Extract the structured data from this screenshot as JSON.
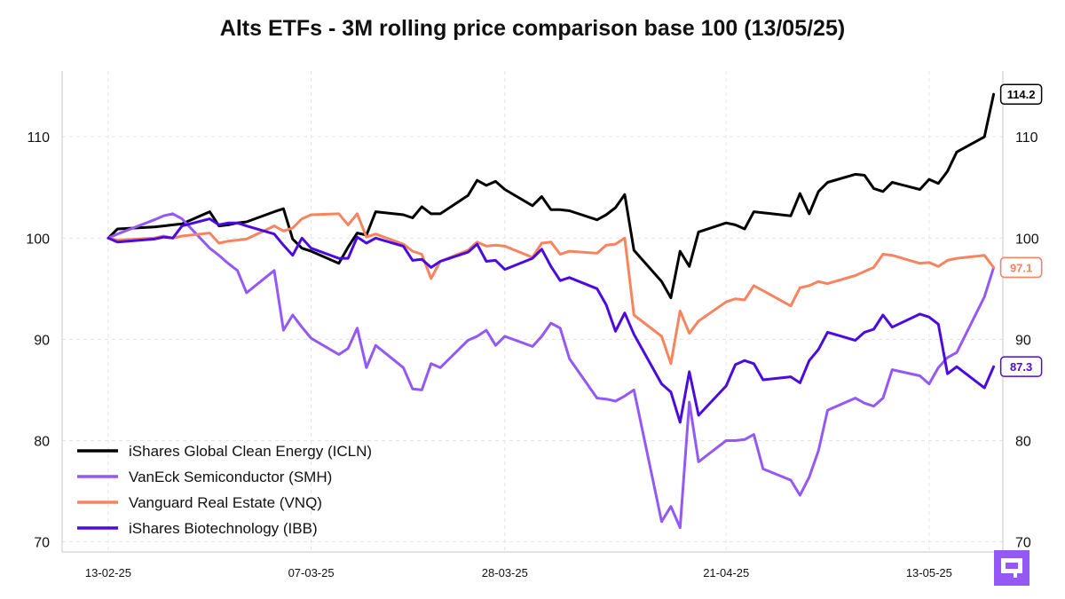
{
  "chart_data": {
    "type": "line",
    "title": "Alts ETFs - 3M rolling price comparison base 100 (13/05/25)",
    "xlabel": "",
    "ylabel": "",
    "ylim": [
      69,
      116.5
    ],
    "yticks": [
      70,
      80,
      90,
      100,
      110
    ],
    "x_tick_labels": [
      "13-02-25",
      "07-03-25",
      "28-03-25",
      "21-04-25",
      "13-05-25"
    ],
    "x_tick_dates": [
      "2025-02-13",
      "2025-03-07",
      "2025-03-28",
      "2025-04-21",
      "2025-05-13"
    ],
    "xlim": [
      "2025-02-08",
      "2025-05-21"
    ],
    "grid": true,
    "legend_position": "lower-left",
    "series": [
      {
        "name": "iShares Global Clean Energy (ICLN)",
        "color": "#000000",
        "end_label": "114.2",
        "points": [
          [
            "2025-02-13",
            100.0
          ],
          [
            "2025-02-14",
            100.9
          ],
          [
            "2025-02-18",
            101.1
          ],
          [
            "2025-02-19",
            101.2
          ],
          [
            "2025-02-20",
            101.3
          ],
          [
            "2025-02-21",
            101.4
          ],
          [
            "2025-02-24",
            102.6
          ],
          [
            "2025-02-25",
            101.2
          ],
          [
            "2025-02-26",
            101.3
          ],
          [
            "2025-02-27",
            101.5
          ],
          [
            "2025-02-28",
            101.6
          ],
          [
            "2025-03-03",
            102.6
          ],
          [
            "2025-03-04",
            102.9
          ],
          [
            "2025-03-05",
            99.9
          ],
          [
            "2025-03-06",
            99.0
          ],
          [
            "2025-03-07",
            98.7
          ],
          [
            "2025-03-10",
            97.5
          ],
          [
            "2025-03-11",
            99.1
          ],
          [
            "2025-03-12",
            100.5
          ],
          [
            "2025-03-13",
            100.3
          ],
          [
            "2025-03-14",
            102.6
          ],
          [
            "2025-03-17",
            102.3
          ],
          [
            "2025-03-18",
            102.0
          ],
          [
            "2025-03-19",
            103.1
          ],
          [
            "2025-03-20",
            102.4
          ],
          [
            "2025-03-21",
            102.4
          ],
          [
            "2025-03-24",
            104.2
          ],
          [
            "2025-03-25",
            105.7
          ],
          [
            "2025-03-26",
            105.2
          ],
          [
            "2025-03-27",
            105.6
          ],
          [
            "2025-03-28",
            104.8
          ],
          [
            "2025-03-31",
            103.2
          ],
          [
            "2025-04-01",
            104.1
          ],
          [
            "2025-04-02",
            102.8
          ],
          [
            "2025-04-03",
            102.8
          ],
          [
            "2025-04-04",
            102.7
          ],
          [
            "2025-04-07",
            101.8
          ],
          [
            "2025-04-08",
            102.3
          ],
          [
            "2025-04-09",
            103.0
          ],
          [
            "2025-04-10",
            104.3
          ],
          [
            "2025-04-11",
            98.8
          ],
          [
            "2025-04-14",
            95.7
          ],
          [
            "2025-04-15",
            94.1
          ],
          [
            "2025-04-16",
            98.7
          ],
          [
            "2025-04-17",
            97.2
          ],
          [
            "2025-04-18",
            100.6
          ],
          [
            "2025-04-21",
            101.5
          ],
          [
            "2025-04-22",
            101.3
          ],
          [
            "2025-04-23",
            100.9
          ],
          [
            "2025-04-24",
            102.6
          ],
          [
            "2025-04-25",
            102.5
          ],
          [
            "2025-04-28",
            102.2
          ],
          [
            "2025-04-29",
            104.4
          ],
          [
            "2025-04-30",
            102.4
          ],
          [
            "2025-05-01",
            104.6
          ],
          [
            "2025-05-02",
            105.5
          ],
          [
            "2025-05-05",
            106.3
          ],
          [
            "2025-05-06",
            106.2
          ],
          [
            "2025-05-07",
            104.9
          ],
          [
            "2025-05-08",
            104.6
          ],
          [
            "2025-05-09",
            105.5
          ],
          [
            "2025-05-12",
            104.8
          ],
          [
            "2025-05-13",
            105.8
          ],
          [
            "2025-05-14",
            105.4
          ],
          [
            "2025-05-15",
            106.6
          ],
          [
            "2025-05-16",
            108.5
          ],
          [
            "2025-05-19",
            110.0
          ],
          [
            "2025-05-20",
            114.2
          ]
        ]
      },
      {
        "name": "VanEck Semiconductor (SMH)",
        "color": "#9358f5",
        "end_label": "97.1",
        "points": [
          [
            "2025-02-13",
            100.0
          ],
          [
            "2025-02-14",
            100.4
          ],
          [
            "2025-02-18",
            101.8
          ],
          [
            "2025-02-19",
            102.2
          ],
          [
            "2025-02-20",
            102.4
          ],
          [
            "2025-02-21",
            101.9
          ],
          [
            "2025-02-24",
            99.0
          ],
          [
            "2025-02-25",
            98.3
          ],
          [
            "2025-02-26",
            97.5
          ],
          [
            "2025-02-27",
            96.8
          ],
          [
            "2025-02-28",
            94.6
          ],
          [
            "2025-03-03",
            96.8
          ],
          [
            "2025-03-04",
            90.9
          ],
          [
            "2025-03-05",
            92.4
          ],
          [
            "2025-03-06",
            91.2
          ],
          [
            "2025-03-07",
            90.1
          ],
          [
            "2025-03-10",
            88.5
          ],
          [
            "2025-03-11",
            89.1
          ],
          [
            "2025-03-12",
            91.1
          ],
          [
            "2025-03-13",
            87.2
          ],
          [
            "2025-03-14",
            89.4
          ],
          [
            "2025-03-17",
            87.2
          ],
          [
            "2025-03-18",
            85.1
          ],
          [
            "2025-03-19",
            85.0
          ],
          [
            "2025-03-20",
            87.6
          ],
          [
            "2025-03-21",
            87.2
          ],
          [
            "2025-03-24",
            89.9
          ],
          [
            "2025-03-25",
            90.3
          ],
          [
            "2025-03-26",
            90.9
          ],
          [
            "2025-03-27",
            89.4
          ],
          [
            "2025-03-28",
            90.3
          ],
          [
            "2025-03-31",
            89.3
          ],
          [
            "2025-04-01",
            90.3
          ],
          [
            "2025-04-02",
            91.6
          ],
          [
            "2025-04-03",
            91.1
          ],
          [
            "2025-04-04",
            88.1
          ],
          [
            "2025-04-07",
            84.2
          ],
          [
            "2025-04-08",
            84.1
          ],
          [
            "2025-04-09",
            83.9
          ],
          [
            "2025-04-10",
            84.4
          ],
          [
            "2025-04-11",
            85.0
          ],
          [
            "2025-04-14",
            72.0
          ],
          [
            "2025-04-15",
            73.5
          ],
          [
            "2025-04-16",
            71.4
          ],
          [
            "2025-04-17",
            83.8
          ],
          [
            "2025-04-18",
            77.9
          ],
          [
            "2025-04-21",
            80.0
          ],
          [
            "2025-04-22",
            80.0
          ],
          [
            "2025-04-23",
            80.1
          ],
          [
            "2025-04-24",
            80.6
          ],
          [
            "2025-04-25",
            77.2
          ],
          [
            "2025-04-28",
            76.1
          ],
          [
            "2025-04-29",
            74.6
          ],
          [
            "2025-04-30",
            76.4
          ],
          [
            "2025-05-01",
            79.0
          ],
          [
            "2025-05-02",
            83.0
          ],
          [
            "2025-05-05",
            84.2
          ],
          [
            "2025-05-06",
            83.7
          ],
          [
            "2025-05-07",
            83.4
          ],
          [
            "2025-05-08",
            84.2
          ],
          [
            "2025-05-09",
            87.0
          ],
          [
            "2025-05-12",
            86.4
          ],
          [
            "2025-05-13",
            85.6
          ],
          [
            "2025-05-14",
            87.2
          ],
          [
            "2025-05-15",
            88.2
          ],
          [
            "2025-05-16",
            88.7
          ],
          [
            "2025-05-19",
            94.2
          ],
          [
            "2025-05-20",
            97.1
          ]
        ]
      },
      {
        "name": "Vanguard Real Estate (VNQ)",
        "color": "#f7845e",
        "end_label": "97.1",
        "points": [
          [
            "2025-02-13",
            100.0
          ],
          [
            "2025-02-14",
            99.8
          ],
          [
            "2025-02-18",
            100.0
          ],
          [
            "2025-02-19",
            100.2
          ],
          [
            "2025-02-20",
            100.0
          ],
          [
            "2025-02-21",
            100.2
          ],
          [
            "2025-02-24",
            100.5
          ],
          [
            "2025-02-25",
            99.5
          ],
          [
            "2025-02-26",
            99.7
          ],
          [
            "2025-02-27",
            99.8
          ],
          [
            "2025-02-28",
            99.9
          ],
          [
            "2025-03-03",
            101.2
          ],
          [
            "2025-03-04",
            100.7
          ],
          [
            "2025-03-05",
            101.0
          ],
          [
            "2025-03-06",
            101.9
          ],
          [
            "2025-03-07",
            102.3
          ],
          [
            "2025-03-10",
            102.4
          ],
          [
            "2025-03-11",
            101.3
          ],
          [
            "2025-03-12",
            102.4
          ],
          [
            "2025-03-13",
            100.1
          ],
          [
            "2025-03-14",
            100.4
          ],
          [
            "2025-03-17",
            99.4
          ],
          [
            "2025-03-18",
            98.7
          ],
          [
            "2025-03-19",
            98.4
          ],
          [
            "2025-03-20",
            96.0
          ],
          [
            "2025-03-21",
            97.7
          ],
          [
            "2025-03-24",
            98.8
          ],
          [
            "2025-03-25",
            99.6
          ],
          [
            "2025-03-26",
            99.2
          ],
          [
            "2025-03-27",
            99.3
          ],
          [
            "2025-03-28",
            99.2
          ],
          [
            "2025-03-31",
            98.1
          ],
          [
            "2025-04-01",
            99.5
          ],
          [
            "2025-04-02",
            99.6
          ],
          [
            "2025-04-03",
            98.4
          ],
          [
            "2025-04-04",
            98.7
          ],
          [
            "2025-04-07",
            98.5
          ],
          [
            "2025-04-08",
            99.3
          ],
          [
            "2025-04-09",
            99.4
          ],
          [
            "2025-04-10",
            100.0
          ],
          [
            "2025-04-11",
            92.4
          ],
          [
            "2025-04-14",
            90.3
          ],
          [
            "2025-04-15",
            87.6
          ],
          [
            "2025-04-16",
            92.8
          ],
          [
            "2025-04-17",
            90.6
          ],
          [
            "2025-04-18",
            91.8
          ],
          [
            "2025-04-21",
            93.7
          ],
          [
            "2025-04-22",
            94.0
          ],
          [
            "2025-04-23",
            93.9
          ],
          [
            "2025-04-24",
            95.3
          ],
          [
            "2025-04-25",
            94.8
          ],
          [
            "2025-04-28",
            93.3
          ],
          [
            "2025-04-29",
            95.1
          ],
          [
            "2025-04-30",
            95.3
          ],
          [
            "2025-05-01",
            95.7
          ],
          [
            "2025-05-02",
            95.5
          ],
          [
            "2025-05-05",
            96.3
          ],
          [
            "2025-05-06",
            96.7
          ],
          [
            "2025-05-07",
            97.1
          ],
          [
            "2025-05-08",
            98.4
          ],
          [
            "2025-05-09",
            98.3
          ],
          [
            "2025-05-12",
            97.5
          ],
          [
            "2025-05-13",
            97.6
          ],
          [
            "2025-05-14",
            97.2
          ],
          [
            "2025-05-15",
            97.8
          ],
          [
            "2025-05-16",
            98.0
          ],
          [
            "2025-05-19",
            98.3
          ],
          [
            "2025-05-20",
            97.1
          ]
        ]
      },
      {
        "name": "iShares Biotechnology (IBB)",
        "color": "#4a0bdc",
        "end_label": "87.3",
        "points": [
          [
            "2025-02-13",
            100.0
          ],
          [
            "2025-02-14",
            99.6
          ],
          [
            "2025-02-18",
            99.9
          ],
          [
            "2025-02-19",
            100.1
          ],
          [
            "2025-02-20",
            100.0
          ],
          [
            "2025-02-21",
            101.2
          ],
          [
            "2025-02-24",
            101.9
          ],
          [
            "2025-02-25",
            101.3
          ],
          [
            "2025-02-26",
            101.5
          ],
          [
            "2025-02-27",
            101.5
          ],
          [
            "2025-02-28",
            101.2
          ],
          [
            "2025-03-03",
            100.4
          ],
          [
            "2025-03-04",
            99.3
          ],
          [
            "2025-03-05",
            98.3
          ],
          [
            "2025-03-06",
            100.0
          ],
          [
            "2025-03-07",
            99.0
          ],
          [
            "2025-03-10",
            98.0
          ],
          [
            "2025-03-11",
            98.0
          ],
          [
            "2025-03-12",
            100.1
          ],
          [
            "2025-03-13",
            99.5
          ],
          [
            "2025-03-14",
            100.0
          ],
          [
            "2025-03-17",
            99.2
          ],
          [
            "2025-03-18",
            97.8
          ],
          [
            "2025-03-19",
            97.9
          ],
          [
            "2025-03-20",
            97.1
          ],
          [
            "2025-03-21",
            97.7
          ],
          [
            "2025-03-24",
            98.6
          ],
          [
            "2025-03-25",
            99.4
          ],
          [
            "2025-03-26",
            97.7
          ],
          [
            "2025-03-27",
            97.8
          ],
          [
            "2025-03-28",
            96.9
          ],
          [
            "2025-03-31",
            98.0
          ],
          [
            "2025-04-01",
            98.9
          ],
          [
            "2025-04-02",
            97.2
          ],
          [
            "2025-04-03",
            95.8
          ],
          [
            "2025-04-04",
            96.1
          ],
          [
            "2025-04-07",
            95.0
          ],
          [
            "2025-04-08",
            93.4
          ],
          [
            "2025-04-09",
            90.8
          ],
          [
            "2025-04-10",
            92.6
          ],
          [
            "2025-04-11",
            90.5
          ],
          [
            "2025-04-14",
            85.6
          ],
          [
            "2025-04-15",
            84.8
          ],
          [
            "2025-04-16",
            81.8
          ],
          [
            "2025-04-17",
            86.8
          ],
          [
            "2025-04-18",
            82.5
          ],
          [
            "2025-04-21",
            85.4
          ],
          [
            "2025-04-22",
            87.5
          ],
          [
            "2025-04-23",
            87.9
          ],
          [
            "2025-04-24",
            87.6
          ],
          [
            "2025-04-25",
            86.0
          ],
          [
            "2025-04-28",
            86.3
          ],
          [
            "2025-04-29",
            85.7
          ],
          [
            "2025-04-30",
            87.9
          ],
          [
            "2025-05-01",
            89.0
          ],
          [
            "2025-05-02",
            90.7
          ],
          [
            "2025-05-05",
            89.9
          ],
          [
            "2025-05-06",
            90.7
          ],
          [
            "2025-05-07",
            91.0
          ],
          [
            "2025-05-08",
            92.4
          ],
          [
            "2025-05-09",
            91.2
          ],
          [
            "2025-05-12",
            92.5
          ],
          [
            "2025-05-13",
            92.2
          ],
          [
            "2025-05-14",
            91.5
          ],
          [
            "2025-05-15",
            86.6
          ],
          [
            "2025-05-16",
            87.3
          ],
          [
            "2025-05-19",
            85.2
          ],
          [
            "2025-05-20",
            87.3
          ]
        ]
      }
    ]
  },
  "logo": {
    "name": "brand-logo",
    "color": "#9358f5"
  }
}
